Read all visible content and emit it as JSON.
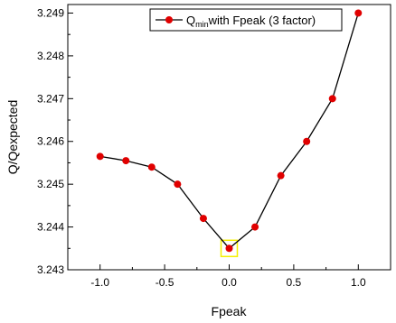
{
  "chart_data": {
    "type": "line",
    "title": "",
    "xlabel": "Fpeak",
    "ylabel": "Q/Qexpected",
    "xlim": [
      -1.25,
      1.25
    ],
    "ylim": [
      3.243,
      3.2492
    ],
    "x_ticks": [
      -1.0,
      -0.5,
      0.0,
      0.5,
      1.0
    ],
    "x_tick_labels": [
      "-1.0",
      "-0.5",
      "0.0",
      "0.5",
      "1.0"
    ],
    "y_ticks": [
      3.243,
      3.244,
      3.245,
      3.246,
      3.247,
      3.248,
      3.249
    ],
    "y_tick_labels": [
      "3.243",
      "3.244",
      "3.245",
      "3.246",
      "3.247",
      "3.248",
      "3.249"
    ],
    "grid": false,
    "legend_position": "top-right",
    "series": [
      {
        "name_main": "Q",
        "name_sub": "min",
        "name_rest": "with Fpeak (3 factor)",
        "color": "#e00000",
        "line_color": "#000000",
        "x": [
          -1.0,
          -0.8,
          -0.6,
          -0.4,
          -0.2,
          0.0,
          0.2,
          0.4,
          0.6,
          0.8,
          1.0
        ],
        "y": [
          3.24565,
          3.24555,
          3.2454,
          3.245,
          3.2442,
          3.2435,
          3.244,
          3.2452,
          3.246,
          3.247,
          3.249
        ]
      }
    ],
    "highlight": {
      "x": 0.0,
      "y": 3.2435,
      "color": "#f5f000"
    }
  }
}
